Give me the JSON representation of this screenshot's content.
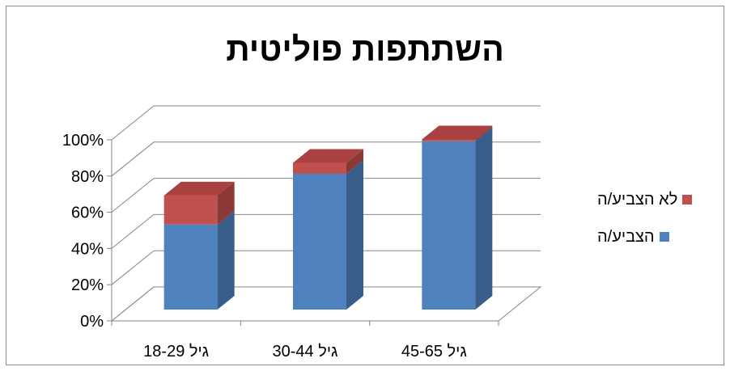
{
  "chart_data": {
    "type": "bar",
    "stacked": true,
    "three_d": true,
    "title": "השתתפות פוליטית",
    "categories": [
      "גיל 18-29",
      "גיל 30-44",
      "גיל 45-65"
    ],
    "series": [
      {
        "name": "הצביע/ה",
        "values": [
          47,
          75,
          93
        ],
        "color": "#4f81bd",
        "side": "#385d8a",
        "top": "#6a95c9"
      },
      {
        "name": "לא הצביע/ה",
        "values": [
          16,
          6,
          1
        ],
        "color": "#c0504d",
        "side": "#8c3836",
        "top": "#a8413f"
      }
    ],
    "yticks": [
      "0%",
      "20%",
      "40%",
      "60%",
      "80%",
      "100%"
    ],
    "ylim": [
      0,
      100
    ],
    "grid": true,
    "legend": "right"
  }
}
